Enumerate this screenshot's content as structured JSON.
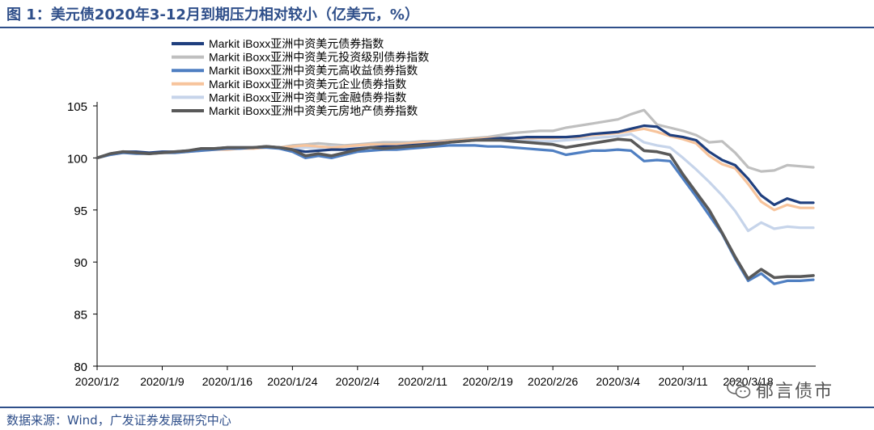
{
  "header": {
    "title": "图 1：美元债2020年3-12月到期压力相对较小（亿美元，%）"
  },
  "footer": {
    "source": "数据来源：Wind，广发证券发展研究中心"
  },
  "watermark": {
    "text": "郁言债市",
    "icon": "wechat-icon"
  },
  "chart_data": {
    "type": "line",
    "title": "",
    "xlabel": "",
    "ylabel": "",
    "ylim": [
      80,
      105
    ],
    "yticks": [
      80,
      85,
      90,
      95,
      100,
      105
    ],
    "grid": false,
    "legend_position": "top-left",
    "x_tick_labels": [
      "2020/1/2",
      "2020/1/9",
      "2020/1/16",
      "2020/1/24",
      "2020/2/4",
      "2020/2/11",
      "2020/2/19",
      "2020/2/26",
      "2020/3/4",
      "2020/3/11",
      "2020/3/18"
    ],
    "x_tick_index": [
      0,
      5,
      10,
      15,
      20,
      25,
      30,
      35,
      40,
      45,
      50
    ],
    "x_count": 56,
    "series": [
      {
        "name": "Markit iBoxx亚洲中资美元债券指数",
        "color": "#1f3f7e",
        "width": 3.2,
        "values": [
          100.0,
          100.4,
          100.6,
          100.6,
          100.5,
          100.6,
          100.6,
          100.7,
          100.9,
          100.9,
          101.0,
          101.0,
          101.0,
          101.1,
          101.0,
          100.8,
          100.6,
          100.7,
          100.8,
          100.8,
          100.9,
          101.0,
          101.1,
          101.1,
          101.2,
          101.3,
          101.4,
          101.5,
          101.6,
          101.7,
          101.8,
          101.9,
          101.9,
          102.0,
          102.0,
          102.0,
          102.0,
          102.1,
          102.3,
          102.4,
          102.5,
          102.8,
          103.1,
          103.0,
          102.2,
          102.0,
          101.7,
          100.6,
          99.8,
          99.3,
          98.0,
          96.4,
          95.5,
          96.1,
          95.7,
          95.7
        ]
      },
      {
        "name": "Markit iBoxx亚洲中资美元投资级别债券指数",
        "color": "#bfbfbf",
        "width": 3.2,
        "values": [
          100.0,
          100.4,
          100.6,
          100.5,
          100.4,
          100.5,
          100.5,
          100.6,
          100.8,
          100.9,
          100.9,
          101.0,
          101.0,
          101.1,
          101.0,
          101.2,
          101.3,
          101.4,
          101.3,
          101.2,
          101.3,
          101.4,
          101.5,
          101.5,
          101.5,
          101.6,
          101.6,
          101.7,
          101.8,
          101.9,
          102.0,
          102.2,
          102.4,
          102.5,
          102.6,
          102.6,
          102.9,
          103.1,
          103.3,
          103.5,
          103.7,
          104.2,
          104.6,
          103.2,
          102.9,
          102.6,
          102.2,
          101.5,
          101.6,
          100.5,
          99.1,
          98.7,
          98.8,
          99.3,
          99.2,
          99.1
        ]
      },
      {
        "name": "Markit iBoxx亚洲中资美元高收益债券指数",
        "color": "#4f7fc2",
        "width": 3.2,
        "values": [
          100.0,
          100.3,
          100.5,
          100.4,
          100.4,
          100.5,
          100.5,
          100.6,
          100.7,
          100.8,
          100.9,
          100.9,
          101.0,
          101.0,
          100.9,
          100.6,
          100.0,
          100.2,
          100.0,
          100.3,
          100.6,
          100.7,
          100.8,
          100.8,
          100.9,
          101.0,
          101.1,
          101.2,
          101.2,
          101.2,
          101.1,
          101.1,
          101.0,
          100.9,
          100.8,
          100.7,
          100.3,
          100.5,
          100.7,
          100.7,
          100.8,
          100.7,
          99.7,
          99.8,
          99.7,
          98.0,
          96.3,
          94.5,
          92.7,
          90.3,
          88.2,
          88.9,
          87.9,
          88.2,
          88.2,
          88.3
        ]
      },
      {
        "name": "Markit iBoxx亚洲中资美元企业债券指数",
        "color": "#f7c49c",
        "width": 3.2,
        "values": [
          100.0,
          100.3,
          100.5,
          100.5,
          100.4,
          100.5,
          100.5,
          100.6,
          100.7,
          100.8,
          100.8,
          100.9,
          100.9,
          101.0,
          101.0,
          101.1,
          101.2,
          101.1,
          101.0,
          101.1,
          101.2,
          101.3,
          101.3,
          101.3,
          101.4,
          101.5,
          101.5,
          101.6,
          101.7,
          101.8,
          101.9,
          101.9,
          101.9,
          101.9,
          101.9,
          101.9,
          102.0,
          102.0,
          102.2,
          102.3,
          102.4,
          102.6,
          102.8,
          102.5,
          102.1,
          101.8,
          101.4,
          100.2,
          99.4,
          99.0,
          97.5,
          95.8,
          95.0,
          95.5,
          95.2,
          95.2
        ]
      },
      {
        "name": "Markit iBoxx亚洲中资美元金融债券指数",
        "color": "#c6d4ea",
        "width": 3.2,
        "values": [
          100.0,
          100.4,
          100.6,
          100.5,
          100.4,
          100.5,
          100.6,
          100.7,
          100.8,
          100.9,
          101.0,
          101.0,
          101.0,
          101.1,
          101.0,
          100.9,
          101.0,
          101.0,
          101.1,
          101.1,
          101.1,
          101.2,
          101.2,
          101.2,
          101.3,
          101.4,
          101.5,
          101.5,
          101.6,
          101.7,
          101.8,
          101.8,
          101.8,
          101.7,
          101.6,
          101.6,
          101.7,
          101.8,
          101.9,
          102.0,
          102.1,
          102.3,
          101.5,
          101.2,
          101.0,
          100.0,
          98.9,
          97.7,
          96.4,
          94.9,
          93.0,
          93.8,
          93.2,
          93.4,
          93.3,
          93.3
        ]
      },
      {
        "name": "Markit iBoxx亚洲中资美元房地产债券指数",
        "color": "#595959",
        "width": 3.6,
        "values": [
          100.0,
          100.4,
          100.6,
          100.5,
          100.4,
          100.5,
          100.6,
          100.7,
          100.9,
          100.9,
          101.0,
          101.0,
          101.0,
          101.1,
          101.0,
          100.8,
          100.2,
          100.4,
          100.2,
          100.5,
          100.8,
          101.0,
          100.9,
          101.0,
          101.1,
          101.2,
          101.3,
          101.5,
          101.6,
          101.7,
          101.7,
          101.7,
          101.6,
          101.5,
          101.4,
          101.3,
          101.0,
          101.2,
          101.4,
          101.6,
          101.8,
          101.7,
          100.7,
          100.6,
          100.3,
          98.4,
          96.7,
          95.0,
          92.8,
          90.5,
          88.4,
          89.3,
          88.5,
          88.6,
          88.6,
          88.7
        ]
      }
    ]
  }
}
